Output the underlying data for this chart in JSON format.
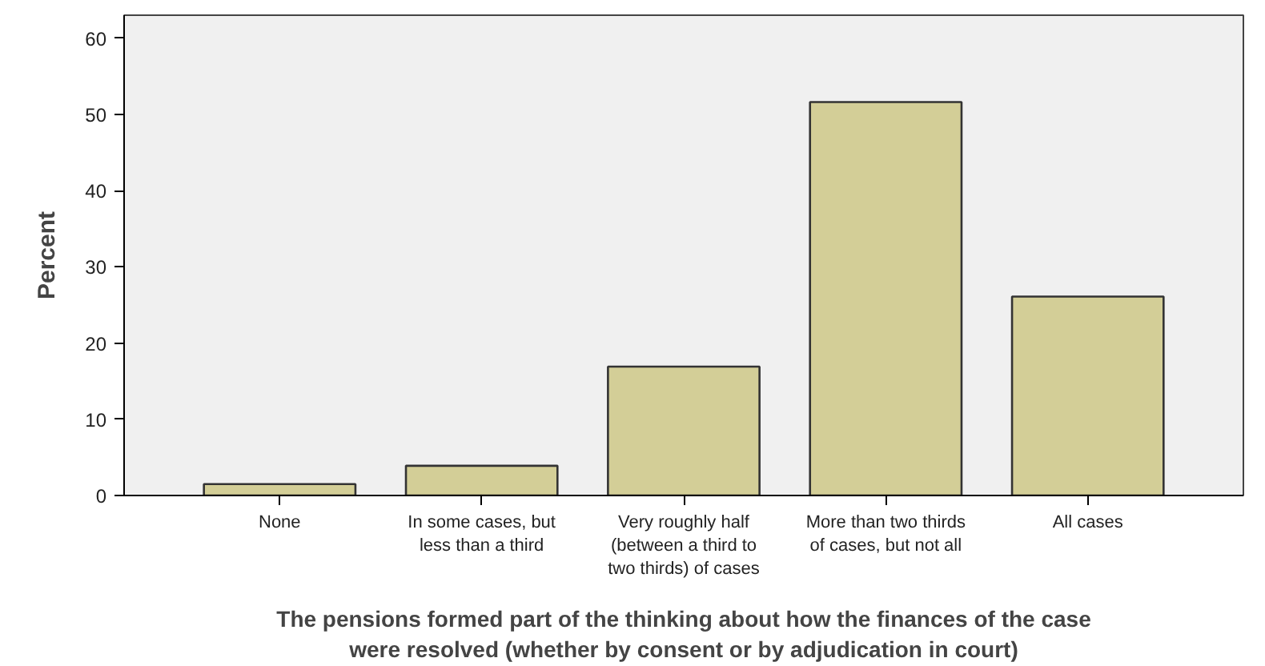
{
  "chart_data": {
    "type": "bar",
    "categories": [
      "None",
      "In some cases, but\nless than a third",
      "Very roughly half\n(between a third to\ntwo thirds) of cases",
      "More than two thirds\nof cases, but not all",
      "All cases"
    ],
    "values": [
      1.5,
      3.9,
      16.9,
      51.6,
      26.1
    ],
    "color": "#d3ce97",
    "xlabel": "The pensions formed part of the thinking about how the finances of the case\nwere resolved (whether by consent or by adjudication in court)",
    "ylabel": "Percent",
    "ylim": [
      0,
      63
    ],
    "yticks": [
      0,
      10,
      20,
      30,
      40,
      50,
      60
    ],
    "grid": false
  }
}
